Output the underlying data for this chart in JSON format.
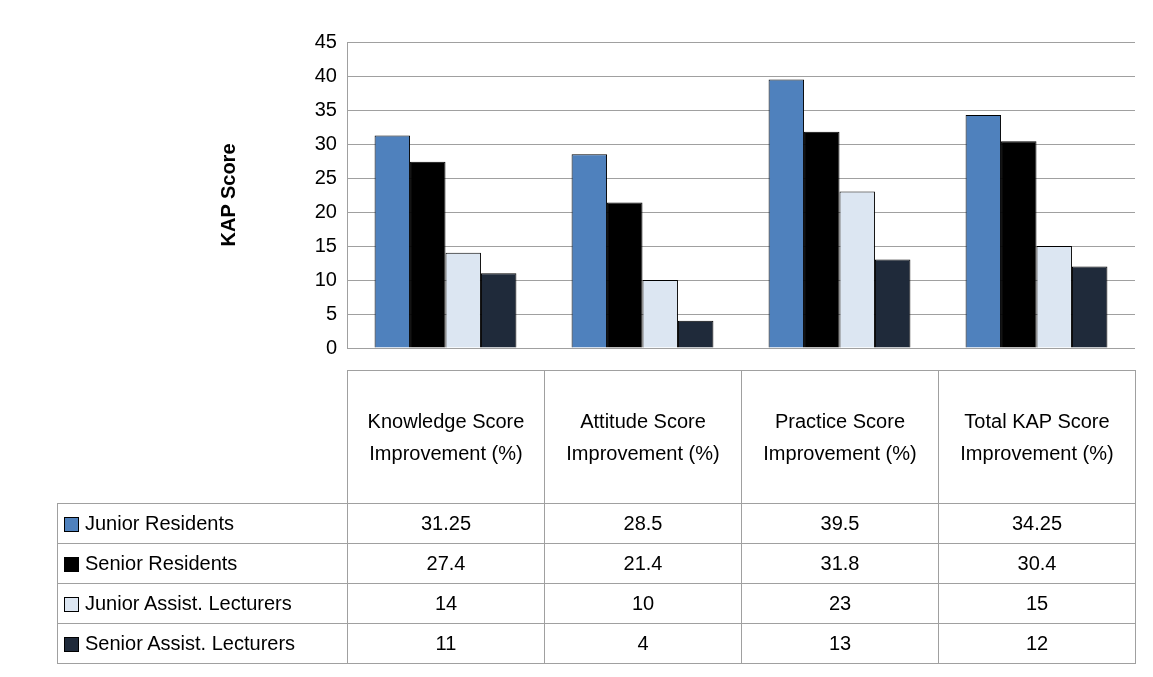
{
  "chart_data": {
    "type": "bar",
    "ylabel": "KAP Score",
    "categories": [
      "Knowledge Score Improvement (%)",
      "Attitude Score Improvement (%)",
      "Practice Score Improvement (%)",
      "Total KAP Score Improvement (%)"
    ],
    "series": [
      {
        "name": "Junior Residents",
        "color": "#4f81bd",
        "values": [
          31.25,
          28.5,
          39.5,
          34.25
        ]
      },
      {
        "name": "Senior Residents",
        "color": "#000000",
        "values": [
          27.4,
          21.4,
          31.8,
          30.4
        ]
      },
      {
        "name": "Junior Assist. Lecturers",
        "color": "#dce6f2",
        "values": [
          14,
          10,
          23,
          15
        ]
      },
      {
        "name": "Senior Assist. Lecturers",
        "color": "#1f2a3a",
        "values": [
          11,
          4,
          13,
          12
        ]
      }
    ],
    "ylim": [
      0,
      45
    ],
    "yticks": [
      0,
      5,
      10,
      15,
      20,
      25,
      30,
      35,
      40,
      45
    ],
    "grid": "y",
    "legend": "bottom",
    "data_labels": true
  }
}
